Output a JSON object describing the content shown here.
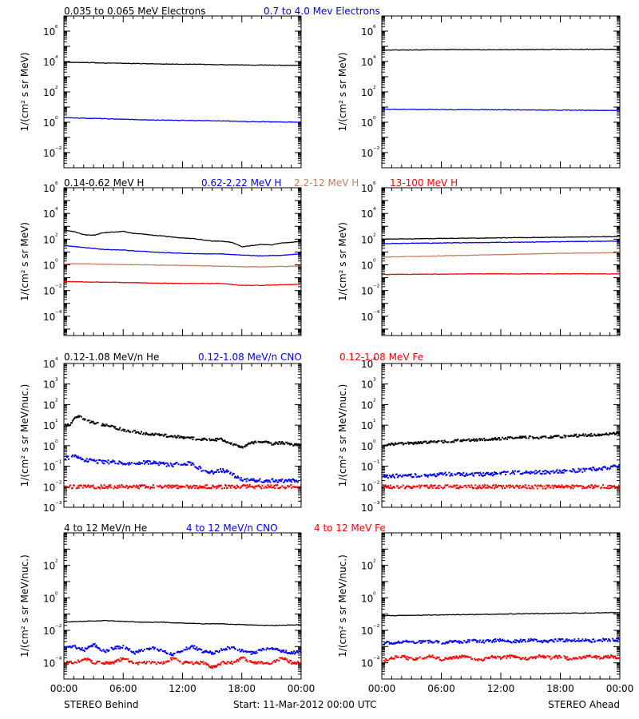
{
  "row_titles": [
    [
      {
        "text": "0.035 to 0.065 MeV Electrons",
        "color": "#000000"
      },
      {
        "text": "0.7 to 4.0 Mev Electrons",
        "color": "#0000ff"
      }
    ],
    [
      {
        "text": "0.14-0.62 MeV H",
        "color": "#000000"
      },
      {
        "text": "0.62-2.22 MeV H",
        "color": "#0000ff"
      },
      {
        "text": "2.2-12 MeV H",
        "color": "#c08060"
      },
      {
        "text": "13-100 MeV H",
        "color": "#ff0000"
      }
    ],
    [
      {
        "text": "0.12-1.08 MeV/n He",
        "color": "#000000"
      },
      {
        "text": "0.12-1.08 MeV/n CNO",
        "color": "#0000ff"
      },
      {
        "text": "0.12-1.08 MeV Fe",
        "color": "#ff0000"
      }
    ],
    [
      {
        "text": "4 to 12 MeV/n He",
        "color": "#000000"
      },
      {
        "text": "4 to 12 MeV/n CNO",
        "color": "#0000ff"
      },
      {
        "text": "4 to 12 MeV Fe",
        "color": "#ff0000"
      }
    ]
  ],
  "x_tick_labels": [
    "00:00",
    "06:00",
    "12:00",
    "18:00",
    "00:00"
  ],
  "footer": {
    "left": "STEREO Behind",
    "center": "Start: 11-Mar-2012 00:00 UTC",
    "right": "STEREO Ahead"
  },
  "chart_data": [
    {
      "id": "electrons-behind",
      "type": "line",
      "row": 0,
      "col": 0,
      "ylabel": "1/(cm^2 s sr MeV)",
      "ylim_exp": [
        -3,
        7
      ],
      "ytick_exps": [
        -2,
        0,
        2,
        4,
        6
      ],
      "xlim_hours": [
        0,
        24
      ],
      "series": [
        {
          "color": "#000000",
          "style": "line",
          "x": [
            0,
            3,
            6,
            9,
            12,
            15,
            18,
            21,
            24
          ],
          "log10y": [
            3.95,
            3.92,
            3.88,
            3.85,
            3.82,
            3.8,
            3.78,
            3.76,
            3.75
          ]
        },
        {
          "color": "#0000ff",
          "style": "line",
          "x": [
            0,
            3,
            6,
            9,
            12,
            15,
            18,
            21,
            24
          ],
          "log10y": [
            0.3,
            0.25,
            0.2,
            0.15,
            0.12,
            0.1,
            0.05,
            0.02,
            0.0
          ]
        }
      ]
    },
    {
      "id": "electrons-ahead",
      "type": "line",
      "row": 0,
      "col": 1,
      "ylabel": "1/(cm^2 s sr MeV)",
      "ylim_exp": [
        -3,
        7
      ],
      "ytick_exps": [
        -2,
        0,
        2,
        4,
        6
      ],
      "xlim_hours": [
        0,
        24
      ],
      "series": [
        {
          "color": "#000000",
          "style": "line",
          "x": [
            0,
            6,
            12,
            18,
            24
          ],
          "log10y": [
            4.75,
            4.78,
            4.78,
            4.8,
            4.8
          ]
        },
        {
          "color": "#0000ff",
          "style": "line",
          "x": [
            0,
            6,
            12,
            18,
            24
          ],
          "log10y": [
            0.85,
            0.83,
            0.82,
            0.8,
            0.78
          ]
        }
      ]
    },
    {
      "id": "protons-behind",
      "type": "line",
      "row": 1,
      "col": 0,
      "ylabel": "1/(cm^2 s sr MeV)",
      "ylim_exp": [
        -5.5,
        6
      ],
      "ytick_exps": [
        -4,
        -2,
        0,
        2,
        4,
        6
      ],
      "xlim_hours": [
        0,
        24
      ],
      "series": [
        {
          "color": "#000000",
          "style": "line",
          "x": [
            0,
            1,
            2,
            3,
            4,
            5,
            6,
            7,
            8,
            9,
            10,
            11,
            12,
            13,
            14,
            15,
            16,
            17,
            18,
            19,
            20,
            21,
            22,
            23,
            24
          ],
          "log10y": [
            2.7,
            2.6,
            2.35,
            2.3,
            2.5,
            2.55,
            2.6,
            2.45,
            2.4,
            2.3,
            2.25,
            2.15,
            2.1,
            2.05,
            1.95,
            1.85,
            1.85,
            1.75,
            1.4,
            1.5,
            1.6,
            1.55,
            1.7,
            1.75,
            1.85
          ]
        },
        {
          "color": "#0000ff",
          "style": "line",
          "x": [
            0,
            2,
            4,
            6,
            8,
            10,
            12,
            14,
            16,
            18,
            20,
            22,
            24
          ],
          "log10y": [
            1.5,
            1.35,
            1.2,
            1.15,
            1.05,
            0.95,
            0.9,
            0.85,
            0.85,
            0.75,
            0.7,
            0.75,
            0.85
          ]
        },
        {
          "color": "#c08060",
          "style": "line",
          "x": [
            0,
            4,
            8,
            12,
            16,
            18,
            20,
            24
          ],
          "log10y": [
            0.1,
            0.05,
            0.0,
            -0.05,
            -0.1,
            -0.15,
            -0.15,
            -0.1
          ]
        },
        {
          "color": "#ff0000",
          "style": "line",
          "x": [
            0,
            4,
            8,
            12,
            16,
            18,
            20,
            24
          ],
          "log10y": [
            -1.3,
            -1.35,
            -1.4,
            -1.45,
            -1.45,
            -1.6,
            -1.6,
            -1.5
          ]
        }
      ]
    },
    {
      "id": "protons-ahead",
      "type": "line",
      "row": 1,
      "col": 1,
      "ylabel": "1/(cm^2 s sr MeV)",
      "ylim_exp": [
        -5.5,
        6
      ],
      "ytick_exps": [
        -4,
        -2,
        0,
        2,
        4,
        6
      ],
      "xlim_hours": [
        0,
        24
      ],
      "series": [
        {
          "color": "#000000",
          "style": "line",
          "x": [
            0,
            6,
            12,
            18,
            24
          ],
          "log10y": [
            2.0,
            2.05,
            2.1,
            2.15,
            2.2
          ]
        },
        {
          "color": "#0000ff",
          "style": "line",
          "x": [
            0,
            6,
            12,
            18,
            24
          ],
          "log10y": [
            1.65,
            1.7,
            1.75,
            1.8,
            1.85
          ]
        },
        {
          "color": "#c08060",
          "style": "line",
          "x": [
            0,
            6,
            12,
            18,
            24
          ],
          "log10y": [
            0.6,
            0.7,
            0.8,
            0.9,
            0.95
          ]
        },
        {
          "color": "#ff0000",
          "style": "line",
          "x": [
            0,
            6,
            12,
            18,
            24
          ],
          "log10y": [
            -0.75,
            -0.72,
            -0.7,
            -0.7,
            -0.7
          ]
        }
      ]
    },
    {
      "id": "heavy-low-behind",
      "type": "scatter",
      "row": 2,
      "col": 0,
      "ylabel": "1/(cm^2 s sr MeV/nuc.)",
      "ylim_exp": [
        -3,
        4
      ],
      "ytick_exps": [
        -3,
        -2,
        -1,
        0,
        1,
        2,
        3,
        4
      ],
      "xlim_hours": [
        0,
        24
      ],
      "series": [
        {
          "color": "#000000",
          "style": "dots",
          "x": [
            0.5,
            1,
            1.5,
            2,
            3,
            4,
            5,
            6,
            7,
            8,
            9,
            10,
            11,
            12,
            13,
            14,
            15,
            16,
            17,
            18,
            19,
            20,
            21,
            22,
            23,
            24
          ],
          "log10y": [
            1.0,
            1.35,
            1.45,
            1.25,
            1.1,
            1.0,
            0.9,
            0.75,
            0.7,
            0.6,
            0.55,
            0.5,
            0.45,
            0.4,
            0.35,
            0.3,
            0.28,
            0.3,
            0.05,
            -0.05,
            0.15,
            0.2,
            0.1,
            0.15,
            0.05,
            0.1
          ]
        },
        {
          "color": "#0000ff",
          "style": "dots",
          "x": [
            0.5,
            1,
            2,
            3,
            4,
            5,
            6,
            7,
            8,
            9,
            10,
            11,
            12,
            13,
            14,
            15,
            16,
            17,
            18,
            19,
            20,
            21,
            22,
            23,
            24
          ],
          "log10y": [
            -0.6,
            -0.5,
            -0.7,
            -0.75,
            -0.8,
            -0.8,
            -0.85,
            -0.9,
            -0.8,
            -0.85,
            -0.9,
            -0.95,
            -0.85,
            -0.9,
            -1.2,
            -1.3,
            -1.2,
            -1.4,
            -1.7,
            -1.7,
            -1.7,
            -1.7,
            -1.7,
            -1.7,
            -1.7
          ]
        },
        {
          "color": "#ff0000",
          "style": "dots",
          "x": [
            0,
            1,
            2,
            3,
            4,
            5,
            6,
            7,
            8,
            9,
            10,
            11,
            12,
            13,
            14,
            15,
            16,
            17,
            18,
            19,
            20,
            21,
            22,
            23,
            24
          ],
          "log10y": [
            -2.0,
            -2.0,
            -2.0,
            -2.0,
            -2.0,
            -2.0,
            -2.0,
            -2.0,
            -2.0,
            -2.0,
            -2.0,
            -2.0,
            -2.0,
            -2.0,
            -2.0,
            -2.0,
            -2.0,
            -2.0,
            -2.0,
            -2.0,
            -2.0,
            -2.0,
            -2.0,
            -2.0,
            -2.0
          ]
        }
      ]
    },
    {
      "id": "heavy-low-ahead",
      "type": "scatter",
      "row": 2,
      "col": 1,
      "ylabel": "1/(cm^2 s sr MeV/nuc.)",
      "ylim_exp": [
        -3,
        4
      ],
      "ytick_exps": [
        -3,
        -2,
        -1,
        0,
        1,
        2,
        3,
        4
      ],
      "xlim_hours": [
        0,
        24
      ],
      "series": [
        {
          "color": "#000000",
          "style": "dots",
          "x": [
            0,
            2,
            4,
            6,
            8,
            10,
            12,
            14,
            16,
            18,
            20,
            22,
            24
          ],
          "log10y": [
            0.05,
            0.1,
            0.15,
            0.2,
            0.25,
            0.3,
            0.35,
            0.4,
            0.4,
            0.45,
            0.5,
            0.55,
            0.6
          ]
        },
        {
          "color": "#0000ff",
          "style": "dots",
          "x": [
            0,
            2,
            4,
            6,
            8,
            10,
            12,
            14,
            16,
            18,
            20,
            22,
            24
          ],
          "log10y": [
            -1.5,
            -1.45,
            -1.45,
            -1.4,
            -1.4,
            -1.4,
            -1.35,
            -1.3,
            -1.3,
            -1.25,
            -1.2,
            -1.1,
            -1.0
          ]
        },
        {
          "color": "#ff0000",
          "style": "dots",
          "x": [
            0,
            2,
            4,
            6,
            8,
            10,
            12,
            14,
            16,
            18,
            20,
            22,
            24
          ],
          "log10y": [
            -2.0,
            -2.0,
            -2.0,
            -2.0,
            -2.0,
            -2.0,
            -2.0,
            -2.0,
            -2.0,
            -2.0,
            -2.0,
            -2.0,
            -2.0
          ]
        }
      ]
    },
    {
      "id": "heavy-high-behind",
      "type": "scatter",
      "row": 3,
      "col": 0,
      "ylabel": "1/(cm^2 s sr MeV/nuc.)",
      "ylim_exp": [
        -5,
        4
      ],
      "ytick_exps": [
        -4,
        -2,
        0,
        2
      ],
      "xlim_hours": [
        0,
        24
      ],
      "series": [
        {
          "color": "#000000",
          "style": "line",
          "x": [
            0,
            2,
            4,
            6,
            8,
            10,
            12,
            14,
            16,
            18,
            20,
            22,
            24
          ],
          "log10y": [
            -1.5,
            -1.45,
            -1.4,
            -1.45,
            -1.5,
            -1.5,
            -1.55,
            -1.6,
            -1.6,
            -1.65,
            -1.7,
            -1.7,
            -1.65
          ]
        },
        {
          "color": "#0000ff",
          "style": "dots",
          "x": [
            0,
            1,
            2,
            3,
            4,
            5,
            6,
            7,
            8,
            9,
            10,
            11,
            12,
            13,
            14,
            15,
            16,
            17,
            18,
            19,
            20,
            21,
            22,
            23,
            24
          ],
          "log10y": [
            -3.1,
            -3.0,
            -3.2,
            -2.9,
            -3.3,
            -3.1,
            -3.0,
            -3.4,
            -3.2,
            -3.1,
            -3.3,
            -3.5,
            -3.2,
            -3.0,
            -3.3,
            -3.4,
            -3.2,
            -3.0,
            -3.3,
            -3.4,
            -3.2,
            -3.1,
            -3.3,
            -3.4,
            -3.3
          ]
        },
        {
          "color": "#ff0000",
          "style": "dots",
          "x": [
            0,
            1,
            2,
            3,
            4,
            5,
            6,
            7,
            8,
            9,
            10,
            11,
            12,
            13,
            14,
            15,
            16,
            17,
            18,
            19,
            20,
            21,
            22,
            23,
            24
          ],
          "log10y": [
            -4.0,
            -4.0,
            -3.7,
            -4.0,
            -4.0,
            -4.0,
            -3.7,
            -4.0,
            -4.0,
            -4.0,
            -4.0,
            -3.7,
            -4.0,
            -4.0,
            -4.0,
            -4.3,
            -4.0,
            -4.0,
            -3.7,
            -4.0,
            -4.0,
            -4.0,
            -3.7,
            -4.0,
            -4.0
          ]
        }
      ]
    },
    {
      "id": "heavy-high-ahead",
      "type": "scatter",
      "row": 3,
      "col": 1,
      "ylabel": "1/(cm^2 s sr MeV/nuc.)",
      "ylim_exp": [
        -5,
        4
      ],
      "ytick_exps": [
        -4,
        -2,
        0,
        2
      ],
      "xlim_hours": [
        0,
        24
      ],
      "series": [
        {
          "color": "#000000",
          "style": "line",
          "x": [
            0,
            3,
            6,
            9,
            12,
            15,
            18,
            21,
            24
          ],
          "log10y": [
            -1.1,
            -1.08,
            -1.05,
            -1.03,
            -1.0,
            -0.98,
            -0.95,
            -0.93,
            -0.9
          ]
        },
        {
          "color": "#0000ff",
          "style": "dots",
          "x": [
            0,
            1,
            2,
            3,
            4,
            5,
            6,
            7,
            8,
            9,
            10,
            11,
            12,
            13,
            14,
            15,
            16,
            17,
            18,
            19,
            20,
            21,
            22,
            23,
            24
          ],
          "log10y": [
            -2.8,
            -2.75,
            -2.7,
            -2.75,
            -2.7,
            -2.7,
            -2.75,
            -2.7,
            -2.7,
            -2.65,
            -2.7,
            -2.65,
            -2.6,
            -2.7,
            -2.65,
            -2.6,
            -2.7,
            -2.65,
            -2.6,
            -2.65,
            -2.6,
            -2.65,
            -2.6,
            -2.6,
            -2.55
          ]
        },
        {
          "color": "#ff0000",
          "style": "dots",
          "x": [
            0,
            1,
            2,
            3,
            4,
            5,
            6,
            7,
            8,
            9,
            10,
            11,
            12,
            13,
            14,
            15,
            16,
            17,
            18,
            19,
            20,
            21,
            22,
            23,
            24
          ],
          "log10y": [
            -3.9,
            -3.7,
            -3.6,
            -3.8,
            -3.7,
            -3.6,
            -3.8,
            -3.7,
            -3.6,
            -3.7,
            -3.8,
            -3.6,
            -3.7,
            -3.6,
            -3.8,
            -3.7,
            -3.6,
            -3.7,
            -3.6,
            -3.8,
            -3.7,
            -3.6,
            -3.7,
            -3.6,
            -3.7
          ]
        }
      ]
    }
  ]
}
